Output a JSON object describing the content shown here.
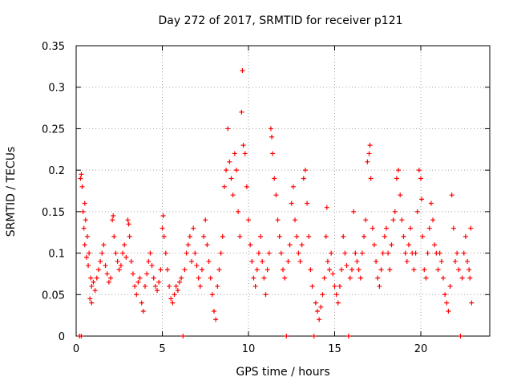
{
  "chart_data": {
    "type": "scatter",
    "title": "Day 272 of 2017, SRMTID for receiver p121",
    "xlabel": "GPS time / hours",
    "ylabel": "SRMTID / TECUs",
    "xlim": [
      0,
      24
    ],
    "ylim": [
      0,
      0.35
    ],
    "xticks": [
      0,
      5,
      10,
      15,
      20
    ],
    "xtick_labels": [
      "0",
      "5",
      "10",
      "15",
      "20"
    ],
    "yticks": [
      0,
      0.05,
      0.1,
      0.15,
      0.2,
      0.25,
      0.3,
      0.35
    ],
    "ytick_labels": [
      "0",
      "0.05",
      "0.1",
      "0.15",
      "0.2",
      "0.25",
      "0.3",
      "0.35"
    ],
    "grid": true,
    "marker": "+",
    "series_color": "#ff0000",
    "series": [
      {
        "name": "SRMTID",
        "points": [
          [
            0.2,
            0.0
          ],
          [
            0.3,
            0.0
          ],
          [
            0.25,
            0.19
          ],
          [
            0.3,
            0.195
          ],
          [
            0.35,
            0.18
          ],
          [
            0.4,
            0.15
          ],
          [
            0.45,
            0.13
          ],
          [
            0.5,
            0.11
          ],
          [
            0.6,
            0.095
          ],
          [
            0.7,
            0.085
          ],
          [
            0.5,
            0.16
          ],
          [
            0.55,
            0.14
          ],
          [
            0.65,
            0.12
          ],
          [
            0.75,
            0.1
          ],
          [
            0.85,
            0.07
          ],
          [
            0.9,
            0.06
          ],
          [
            1.0,
            0.065
          ],
          [
            1.1,
            0.055
          ],
          [
            0.8,
            0.045
          ],
          [
            0.9,
            0.04
          ],
          [
            1.2,
            0.07
          ],
          [
            1.3,
            0.08
          ],
          [
            1.4,
            0.09
          ],
          [
            1.5,
            0.1
          ],
          [
            1.6,
            0.11
          ],
          [
            1.7,
            0.085
          ],
          [
            1.8,
            0.075
          ],
          [
            1.9,
            0.065
          ],
          [
            2.0,
            0.07
          ],
          [
            2.1,
            0.14
          ],
          [
            2.15,
            0.145
          ],
          [
            2.2,
            0.12
          ],
          [
            2.3,
            0.1
          ],
          [
            2.4,
            0.09
          ],
          [
            2.5,
            0.08
          ],
          [
            2.6,
            0.085
          ],
          [
            2.7,
            0.1
          ],
          [
            2.8,
            0.11
          ],
          [
            2.9,
            0.095
          ],
          [
            3.0,
            0.14
          ],
          [
            3.05,
            0.135
          ],
          [
            3.1,
            0.12
          ],
          [
            3.2,
            0.09
          ],
          [
            3.3,
            0.075
          ],
          [
            3.4,
            0.06
          ],
          [
            3.5,
            0.05
          ],
          [
            3.6,
            0.065
          ],
          [
            3.7,
            0.07
          ],
          [
            3.8,
            0.04
          ],
          [
            3.9,
            0.03
          ],
          [
            4.0,
            0.06
          ],
          [
            4.1,
            0.075
          ],
          [
            4.2,
            0.09
          ],
          [
            4.3,
            0.1
          ],
          [
            4.4,
            0.085
          ],
          [
            4.5,
            0.07
          ],
          [
            4.6,
            0.06
          ],
          [
            4.7,
            0.055
          ],
          [
            4.8,
            0.065
          ],
          [
            4.9,
            0.08
          ],
          [
            5.0,
            0.13
          ],
          [
            5.05,
            0.145
          ],
          [
            5.1,
            0.12
          ],
          [
            5.2,
            0.1
          ],
          [
            5.3,
            0.08
          ],
          [
            5.4,
            0.06
          ],
          [
            5.5,
            0.045
          ],
          [
            5.6,
            0.04
          ],
          [
            5.7,
            0.05
          ],
          [
            5.8,
            0.06
          ],
          [
            5.9,
            0.055
          ],
          [
            6.0,
            0.065
          ],
          [
            6.1,
            0.07
          ],
          [
            6.2,
            0.0
          ],
          [
            6.3,
            0.08
          ],
          [
            6.4,
            0.1
          ],
          [
            6.5,
            0.11
          ],
          [
            6.6,
            0.12
          ],
          [
            6.7,
            0.09
          ],
          [
            6.8,
            0.13
          ],
          [
            6.9,
            0.1
          ],
          [
            7.0,
            0.085
          ],
          [
            7.1,
            0.07
          ],
          [
            7.2,
            0.06
          ],
          [
            7.3,
            0.08
          ],
          [
            7.4,
            0.12
          ],
          [
            7.5,
            0.14
          ],
          [
            7.6,
            0.11
          ],
          [
            7.7,
            0.09
          ],
          [
            7.8,
            0.07
          ],
          [
            7.9,
            0.05
          ],
          [
            8.0,
            0.03
          ],
          [
            8.1,
            0.02
          ],
          [
            8.2,
            0.06
          ],
          [
            8.3,
            0.08
          ],
          [
            8.4,
            0.1
          ],
          [
            8.5,
            0.12
          ],
          [
            8.6,
            0.18
          ],
          [
            8.7,
            0.2
          ],
          [
            8.8,
            0.25
          ],
          [
            8.9,
            0.21
          ],
          [
            9.0,
            0.19
          ],
          [
            9.1,
            0.17
          ],
          [
            9.2,
            0.22
          ],
          [
            9.3,
            0.2
          ],
          [
            9.4,
            0.15
          ],
          [
            9.5,
            0.12
          ],
          [
            9.6,
            0.27
          ],
          [
            9.65,
            0.32
          ],
          [
            9.7,
            0.23
          ],
          [
            9.8,
            0.22
          ],
          [
            9.9,
            0.18
          ],
          [
            10.0,
            0.14
          ],
          [
            10.1,
            0.11
          ],
          [
            10.2,
            0.09
          ],
          [
            10.3,
            0.07
          ],
          [
            10.4,
            0.06
          ],
          [
            10.5,
            0.08
          ],
          [
            10.6,
            0.1
          ],
          [
            10.7,
            0.12
          ],
          [
            10.8,
            0.09
          ],
          [
            10.9,
            0.07
          ],
          [
            11.0,
            0.05
          ],
          [
            11.1,
            0.08
          ],
          [
            11.2,
            0.1
          ],
          [
            11.3,
            0.25
          ],
          [
            11.35,
            0.24
          ],
          [
            11.4,
            0.22
          ],
          [
            11.5,
            0.19
          ],
          [
            11.6,
            0.17
          ],
          [
            11.7,
            0.14
          ],
          [
            11.8,
            0.12
          ],
          [
            11.9,
            0.1
          ],
          [
            12.0,
            0.08
          ],
          [
            12.1,
            0.07
          ],
          [
            12.2,
            0.0
          ],
          [
            12.3,
            0.09
          ],
          [
            12.4,
            0.11
          ],
          [
            12.5,
            0.16
          ],
          [
            12.6,
            0.18
          ],
          [
            12.7,
            0.14
          ],
          [
            12.8,
            0.12
          ],
          [
            12.9,
            0.1
          ],
          [
            13.0,
            0.09
          ],
          [
            13.1,
            0.11
          ],
          [
            13.2,
            0.19
          ],
          [
            13.3,
            0.2
          ],
          [
            13.4,
            0.16
          ],
          [
            13.5,
            0.12
          ],
          [
            13.6,
            0.08
          ],
          [
            13.7,
            0.06
          ],
          [
            13.8,
            0.0
          ],
          [
            13.9,
            0.04
          ],
          [
            14.0,
            0.03
          ],
          [
            14.1,
            0.02
          ],
          [
            14.2,
            0.035
          ],
          [
            14.3,
            0.05
          ],
          [
            14.4,
            0.07
          ],
          [
            14.5,
            0.12
          ],
          [
            14.55,
            0.155
          ],
          [
            14.6,
            0.09
          ],
          [
            14.7,
            0.08
          ],
          [
            14.8,
            0.1
          ],
          [
            14.9,
            0.075
          ],
          [
            15.0,
            0.06
          ],
          [
            15.1,
            0.05
          ],
          [
            15.2,
            0.04
          ],
          [
            15.3,
            0.06
          ],
          [
            15.4,
            0.08
          ],
          [
            15.5,
            0.12
          ],
          [
            15.6,
            0.1
          ],
          [
            15.7,
            0.085
          ],
          [
            15.8,
            0.0
          ],
          [
            15.9,
            0.07
          ],
          [
            16.0,
            0.08
          ],
          [
            16.1,
            0.15
          ],
          [
            16.2,
            0.1
          ],
          [
            16.3,
            0.09
          ],
          [
            16.4,
            0.08
          ],
          [
            16.5,
            0.07
          ],
          [
            16.6,
            0.1
          ],
          [
            16.7,
            0.12
          ],
          [
            16.8,
            0.14
          ],
          [
            16.9,
            0.21
          ],
          [
            17.0,
            0.22
          ],
          [
            17.05,
            0.23
          ],
          [
            17.1,
            0.19
          ],
          [
            17.2,
            0.13
          ],
          [
            17.3,
            0.11
          ],
          [
            17.4,
            0.09
          ],
          [
            17.5,
            0.07
          ],
          [
            17.6,
            0.06
          ],
          [
            17.7,
            0.08
          ],
          [
            17.8,
            0.1
          ],
          [
            17.9,
            0.12
          ],
          [
            18.0,
            0.13
          ],
          [
            18.1,
            0.1
          ],
          [
            18.2,
            0.08
          ],
          [
            18.3,
            0.11
          ],
          [
            18.4,
            0.14
          ],
          [
            18.5,
            0.15
          ],
          [
            18.6,
            0.19
          ],
          [
            18.7,
            0.2
          ],
          [
            18.8,
            0.17
          ],
          [
            18.9,
            0.14
          ],
          [
            19.0,
            0.12
          ],
          [
            19.1,
            0.1
          ],
          [
            19.2,
            0.09
          ],
          [
            19.3,
            0.11
          ],
          [
            19.4,
            0.13
          ],
          [
            19.5,
            0.1
          ],
          [
            19.6,
            0.08
          ],
          [
            19.7,
            0.1
          ],
          [
            19.8,
            0.15
          ],
          [
            19.9,
            0.2
          ],
          [
            20.0,
            0.19
          ],
          [
            20.05,
            0.165
          ],
          [
            20.1,
            0.12
          ],
          [
            20.2,
            0.08
          ],
          [
            20.3,
            0.07
          ],
          [
            20.4,
            0.1
          ],
          [
            20.5,
            0.13
          ],
          [
            20.6,
            0.16
          ],
          [
            20.7,
            0.14
          ],
          [
            20.8,
            0.11
          ],
          [
            20.9,
            0.1
          ],
          [
            21.0,
            0.08
          ],
          [
            21.1,
            0.1
          ],
          [
            21.2,
            0.09
          ],
          [
            21.3,
            0.07
          ],
          [
            21.4,
            0.05
          ],
          [
            21.5,
            0.04
          ],
          [
            21.6,
            0.03
          ],
          [
            21.7,
            0.06
          ],
          [
            21.8,
            0.17
          ],
          [
            21.9,
            0.13
          ],
          [
            22.0,
            0.09
          ],
          [
            22.1,
            0.1
          ],
          [
            22.2,
            0.08
          ],
          [
            22.3,
            0.0
          ],
          [
            22.4,
            0.07
          ],
          [
            22.5,
            0.1
          ],
          [
            22.6,
            0.12
          ],
          [
            22.7,
            0.09
          ],
          [
            22.8,
            0.08
          ],
          [
            22.85,
            0.07
          ],
          [
            22.9,
            0.13
          ],
          [
            22.95,
            0.04
          ]
        ]
      }
    ]
  }
}
